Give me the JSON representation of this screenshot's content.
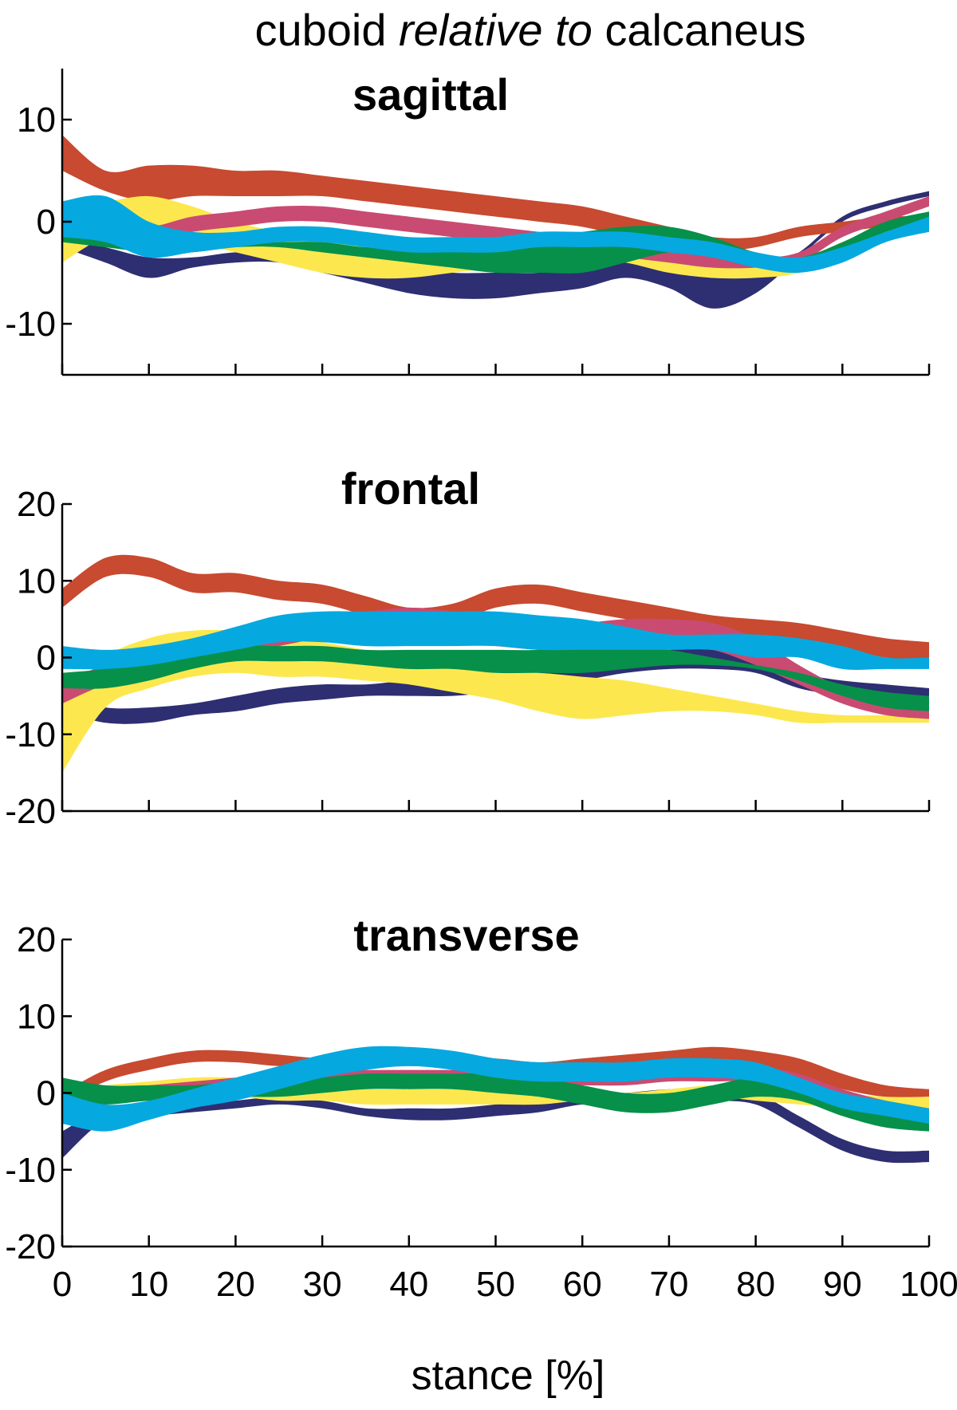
{
  "figure": {
    "title_parts": [
      "cuboid ",
      "relative to",
      " calcaneus"
    ],
    "xlabel": "stance [%]"
  },
  "series_colors": {
    "navy": "#2E2E72",
    "red": "#C84A30",
    "yellow": "#FCE84E",
    "pink": "#C94B72",
    "cyan": "#06A8E0",
    "green": "#06904A"
  },
  "chart_data": [
    {
      "type": "area",
      "title": "sagittal",
      "xlabel": "",
      "ylabel": "",
      "xlim": [
        0,
        100
      ],
      "ylim": [
        -15,
        15
      ],
      "yticks": [
        -10,
        0,
        10
      ],
      "xticks": [
        0,
        10,
        20,
        30,
        40,
        50,
        60,
        70,
        80,
        90,
        100
      ],
      "x": [
        0,
        5,
        10,
        15,
        20,
        25,
        30,
        35,
        40,
        45,
        50,
        55,
        60,
        65,
        70,
        75,
        80,
        85,
        90,
        95,
        100
      ],
      "series": [
        {
          "color": "navy",
          "upper": [
            -1.5,
            -2.5,
            -3.5,
            -3.5,
            -3,
            -3,
            -3.5,
            -4,
            -4.5,
            -5,
            -5,
            -5,
            -4.5,
            -4,
            -4.5,
            -5.5,
            -5,
            -3,
            0.5,
            2,
            3
          ],
          "lower": [
            -2.5,
            -4,
            -5.5,
            -4.5,
            -4,
            -4,
            -5,
            -6,
            -7,
            -7.5,
            -7.5,
            -7,
            -6.5,
            -5.5,
            -6.5,
            -8.5,
            -7,
            -3.5,
            0,
            1.5,
            2.5
          ]
        },
        {
          "color": "red",
          "upper": [
            8.5,
            5,
            5.5,
            5.5,
            5,
            5,
            4.5,
            4,
            3.5,
            3,
            2.5,
            2,
            1.5,
            0.5,
            -0.5,
            -1.5,
            -1.5,
            -0.5,
            0,
            0.5,
            0.5
          ],
          "lower": [
            5,
            3,
            2,
            2.5,
            2.5,
            2.5,
            2.5,
            2,
            1.5,
            1,
            0.5,
            0,
            -0.5,
            -1.5,
            -2.5,
            -3,
            -2.5,
            -1.5,
            -1,
            -0.5,
            -0.5
          ]
        },
        {
          "color": "yellow",
          "upper": [
            2,
            2,
            2.5,
            1.5,
            0,
            -1,
            -1.5,
            -2,
            -2,
            -2,
            -2,
            -2,
            -2,
            -2.5,
            -3,
            -3.5,
            -4,
            -4,
            -2,
            -1,
            0
          ],
          "lower": [
            -4,
            -1.5,
            -1,
            -2,
            -3,
            -4,
            -5,
            -5.5,
            -5.5,
            -5,
            -4.5,
            -4,
            -3.5,
            -4,
            -5,
            -5.5,
            -5.5,
            -5,
            -3,
            -1.5,
            -0.5
          ]
        },
        {
          "color": "pink",
          "upper": [
            0,
            0,
            -0.5,
            0.5,
            1,
            1.5,
            1.5,
            1,
            0.5,
            0,
            -0.5,
            -1,
            -1.5,
            -2,
            -2.5,
            -3,
            -3.5,
            -3,
            -0.5,
            1,
            2.5
          ],
          "lower": [
            -1,
            -1.5,
            -2,
            -1,
            -0.5,
            0,
            0,
            -0.5,
            -1,
            -1.5,
            -2,
            -2.5,
            -3,
            -3.5,
            -4,
            -4.5,
            -4.5,
            -4,
            -1.5,
            0,
            1.5
          ]
        },
        {
          "color": "green",
          "upper": [
            -1,
            -1.5,
            -2,
            -2,
            -2,
            -2,
            -2,
            -2.5,
            -2.5,
            -2.5,
            -2,
            -1.5,
            -1,
            -0.5,
            -0.5,
            -1.5,
            -3,
            -3.5,
            -2,
            0,
            1
          ],
          "lower": [
            -2,
            -2.5,
            -3,
            -3,
            -2.5,
            -2.5,
            -3,
            -3.5,
            -4,
            -4.5,
            -5,
            -5,
            -5,
            -4,
            -3,
            -3,
            -4,
            -4.5,
            -3,
            -1,
            0
          ]
        },
        {
          "color": "cyan",
          "upper": [
            2,
            2.5,
            0,
            -1,
            -1,
            -0.5,
            -0.5,
            -1,
            -1.5,
            -1.5,
            -1.5,
            -1,
            -1,
            -1,
            -1.5,
            -2,
            -3,
            -3.5,
            -2.5,
            -1,
            0.5
          ],
          "lower": [
            -1.5,
            -2,
            -3.5,
            -3,
            -2.5,
            -2,
            -2,
            -2.5,
            -3,
            -3,
            -3,
            -2.5,
            -2.5,
            -2.5,
            -3,
            -3.5,
            -4.5,
            -5,
            -4,
            -2,
            -1
          ]
        }
      ]
    },
    {
      "type": "area",
      "title": "frontal",
      "xlabel": "",
      "ylabel": "",
      "xlim": [
        0,
        100
      ],
      "ylim": [
        -20,
        20
      ],
      "yticks": [
        -20,
        -10,
        0,
        10,
        20
      ],
      "xticks": [
        0,
        10,
        20,
        30,
        40,
        50,
        60,
        70,
        80,
        90,
        100
      ],
      "x": [
        0,
        5,
        10,
        15,
        20,
        25,
        30,
        35,
        40,
        45,
        50,
        55,
        60,
        65,
        70,
        75,
        80,
        85,
        90,
        95,
        100
      ],
      "series": [
        {
          "color": "navy",
          "upper": [
            -5,
            -6.5,
            -6.5,
            -6,
            -5,
            -4,
            -3.5,
            -3.5,
            -3,
            -3,
            -2.5,
            -2,
            -1,
            0,
            1,
            1,
            0,
            -2,
            -3,
            -3.5,
            -4
          ],
          "lower": [
            -7,
            -8.5,
            -8.5,
            -7.5,
            -7,
            -6,
            -5.5,
            -5,
            -5,
            -5,
            -4.5,
            -4,
            -3,
            -2,
            -1.5,
            -1.5,
            -2,
            -4,
            -5,
            -5.5,
            -5.5
          ]
        },
        {
          "color": "red",
          "upper": [
            9,
            13,
            13,
            11,
            11,
            10,
            9.5,
            8,
            6.5,
            7,
            9,
            9.5,
            8.5,
            7.5,
            6.5,
            5.5,
            5,
            4.5,
            3.5,
            2.5,
            2
          ]
        },
        {
          "color": "yellow",
          "upper": [
            -6,
            0,
            2.5,
            3.5,
            3.5,
            3,
            2,
            1,
            0,
            -1,
            -2,
            -2,
            -2.5,
            -3,
            -4,
            -5,
            -6,
            -7,
            -7.5,
            -7.5,
            -7.5
          ],
          "lower": [
            -15,
            -6.5,
            -4,
            -2.5,
            -2,
            -2.5,
            -2.5,
            -3,
            -3.5,
            -4.5,
            -5.5,
            -7,
            -8,
            -7.5,
            -7,
            -7,
            -7.5,
            -8.5,
            -8.5,
            -8.5,
            -8.5
          ]
        },
        {
          "color": "pink",
          "upper": [
            -3,
            -1,
            0.5,
            2,
            3.5,
            4.5,
            5.5,
            6,
            6.5,
            6,
            5,
            4.5,
            4.5,
            5,
            5,
            4.5,
            2.5,
            -1,
            -4,
            -6,
            -7
          ],
          "lower": [
            -6,
            -3.5,
            -2,
            -0.5,
            0.5,
            1.5,
            2.5,
            2.5,
            2.5,
            2,
            1.5,
            1,
            1,
            1,
            1.5,
            1,
            -1,
            -3.5,
            -6,
            -7.5,
            -8
          ]
        },
        {
          "color": "green",
          "upper": [
            -2,
            -1.5,
            -0.5,
            0.5,
            1.5,
            1.5,
            1.5,
            1,
            1,
            1,
            1,
            1,
            1.5,
            1.5,
            1,
            0,
            -1,
            -2,
            -3.5,
            -4.5,
            -5
          ],
          "lower": [
            -4,
            -4,
            -3,
            -1.5,
            -0.5,
            -0.5,
            -0.5,
            -1,
            -1.5,
            -1.5,
            -2,
            -2,
            -2,
            -1.5,
            -1,
            -1,
            -1.5,
            -3,
            -5,
            -6.5,
            -7
          ]
        },
        {
          "color": "cyan",
          "upper": [
            1.5,
            1,
            1.5,
            2.5,
            4,
            5.5,
            6,
            6,
            6,
            6,
            6,
            5.5,
            5,
            4,
            3,
            3,
            3,
            2.5,
            1.5,
            0,
            0
          ],
          "lower": [
            -1.5,
            -1.5,
            -1,
            0,
            1,
            2,
            2,
            1.5,
            1.5,
            1.5,
            1.5,
            1,
            1,
            1,
            1,
            1,
            0,
            0,
            -1.5,
            -1.5,
            -1.5
          ]
        }
      ]
    },
    {
      "type": "area",
      "title": "transverse",
      "xlabel": "stance [%]",
      "ylabel": "",
      "xlim": [
        0,
        100
      ],
      "ylim": [
        -20,
        20
      ],
      "yticks": [
        -20,
        -10,
        0,
        10,
        20
      ],
      "xticks": [
        0,
        10,
        20,
        30,
        40,
        50,
        60,
        70,
        80,
        90,
        100
      ],
      "x": [
        0,
        5,
        10,
        15,
        20,
        25,
        30,
        35,
        40,
        45,
        50,
        55,
        60,
        65,
        70,
        75,
        80,
        85,
        90,
        95,
        100
      ],
      "series": [
        {
          "color": "navy",
          "upper": [
            -5,
            -2,
            -1.5,
            -1.5,
            -1,
            -0.5,
            -1,
            -2,
            -2,
            -2,
            -1.5,
            -1,
            -0.5,
            0,
            0.5,
            0.5,
            0,
            -3,
            -6,
            -7.5,
            -7.5
          ],
          "lower": [
            -8.5,
            -3.5,
            -3,
            -2.5,
            -2,
            -1.5,
            -2,
            -3,
            -3.5,
            -3.5,
            -3,
            -2.5,
            -1.5,
            -1.5,
            -1,
            -1,
            -1.5,
            -4.5,
            -7.5,
            -9,
            -9
          ]
        },
        {
          "color": "red",
          "upper": [
            0,
            3,
            4.5,
            5.5,
            5.5,
            5,
            4.5,
            4.5,
            4.5,
            4.5,
            4.5,
            4,
            4.5,
            5,
            5.5,
            6,
            5.5,
            4.5,
            2.5,
            1,
            0.5
          ],
          "lower": [
            -1.5,
            1.5,
            3,
            4,
            4,
            3.5,
            3.5,
            3.5,
            3.5,
            3.5,
            3.5,
            3,
            3,
            3.5,
            4,
            4,
            3.5,
            2,
            0.5,
            -0.5,
            -0.5
          ]
        },
        {
          "color": "yellow",
          "upper": [
            0,
            1,
            1.5,
            2,
            2,
            1.5,
            1,
            0.5,
            0.5,
            0.5,
            0.5,
            0,
            0,
            0,
            0.5,
            1,
            1,
            0.5,
            0,
            -0.5,
            -0.5
          ],
          "lower": [
            -2,
            -1.5,
            -1,
            -0.5,
            -0.5,
            -1,
            -1,
            -1.5,
            -1.5,
            -1.5,
            -1.5,
            -1.5,
            -1,
            -1,
            -1,
            -0.5,
            -1,
            -1.5,
            -2,
            -2.5,
            -2.5
          ]
        },
        {
          "color": "pink",
          "upper": [
            0,
            0.5,
            1,
            1.5,
            2,
            2.5,
            3,
            3,
            3,
            3,
            3,
            3,
            3,
            3,
            3.5,
            3.5,
            3.5,
            2.5,
            0.5,
            -1,
            -2
          ],
          "lower": [
            -3,
            -1.5,
            -1,
            -0.5,
            0,
            0.5,
            1,
            1,
            1,
            1,
            1,
            1,
            1,
            1,
            1.5,
            1.5,
            1.5,
            0.5,
            -2,
            -4,
            -5
          ]
        },
        {
          "color": "cyan",
          "upper": [
            0,
            -1.5,
            -1,
            0.5,
            2,
            3.5,
            5,
            6,
            6,
            5.5,
            4.5,
            4,
            4,
            4,
            4.5,
            4.5,
            4,
            2,
            0,
            -1,
            -2
          ],
          "lower": [
            -4,
            -5,
            -3.5,
            -2,
            -1,
            0.5,
            2,
            3,
            3.5,
            3,
            2,
            1.5,
            1.5,
            1.5,
            2,
            2,
            1.5,
            0,
            -2,
            -3,
            -4
          ]
        },
        {
          "color": "green",
          "upper": [
            2,
            1,
            1,
            1,
            1.5,
            1.5,
            2,
            2.5,
            2.5,
            2.5,
            2.5,
            2,
            1,
            0,
            0,
            1,
            2,
            1,
            -1,
            -2.5,
            -3
          ],
          "lower": [
            -1,
            -1.5,
            -1,
            -1,
            -0.5,
            -0.5,
            0,
            0.5,
            0.5,
            0.5,
            0,
            -0.5,
            -1.5,
            -2.5,
            -2.5,
            -1.5,
            -0.5,
            -1,
            -3,
            -4.5,
            -5
          ]
        }
      ]
    }
  ]
}
